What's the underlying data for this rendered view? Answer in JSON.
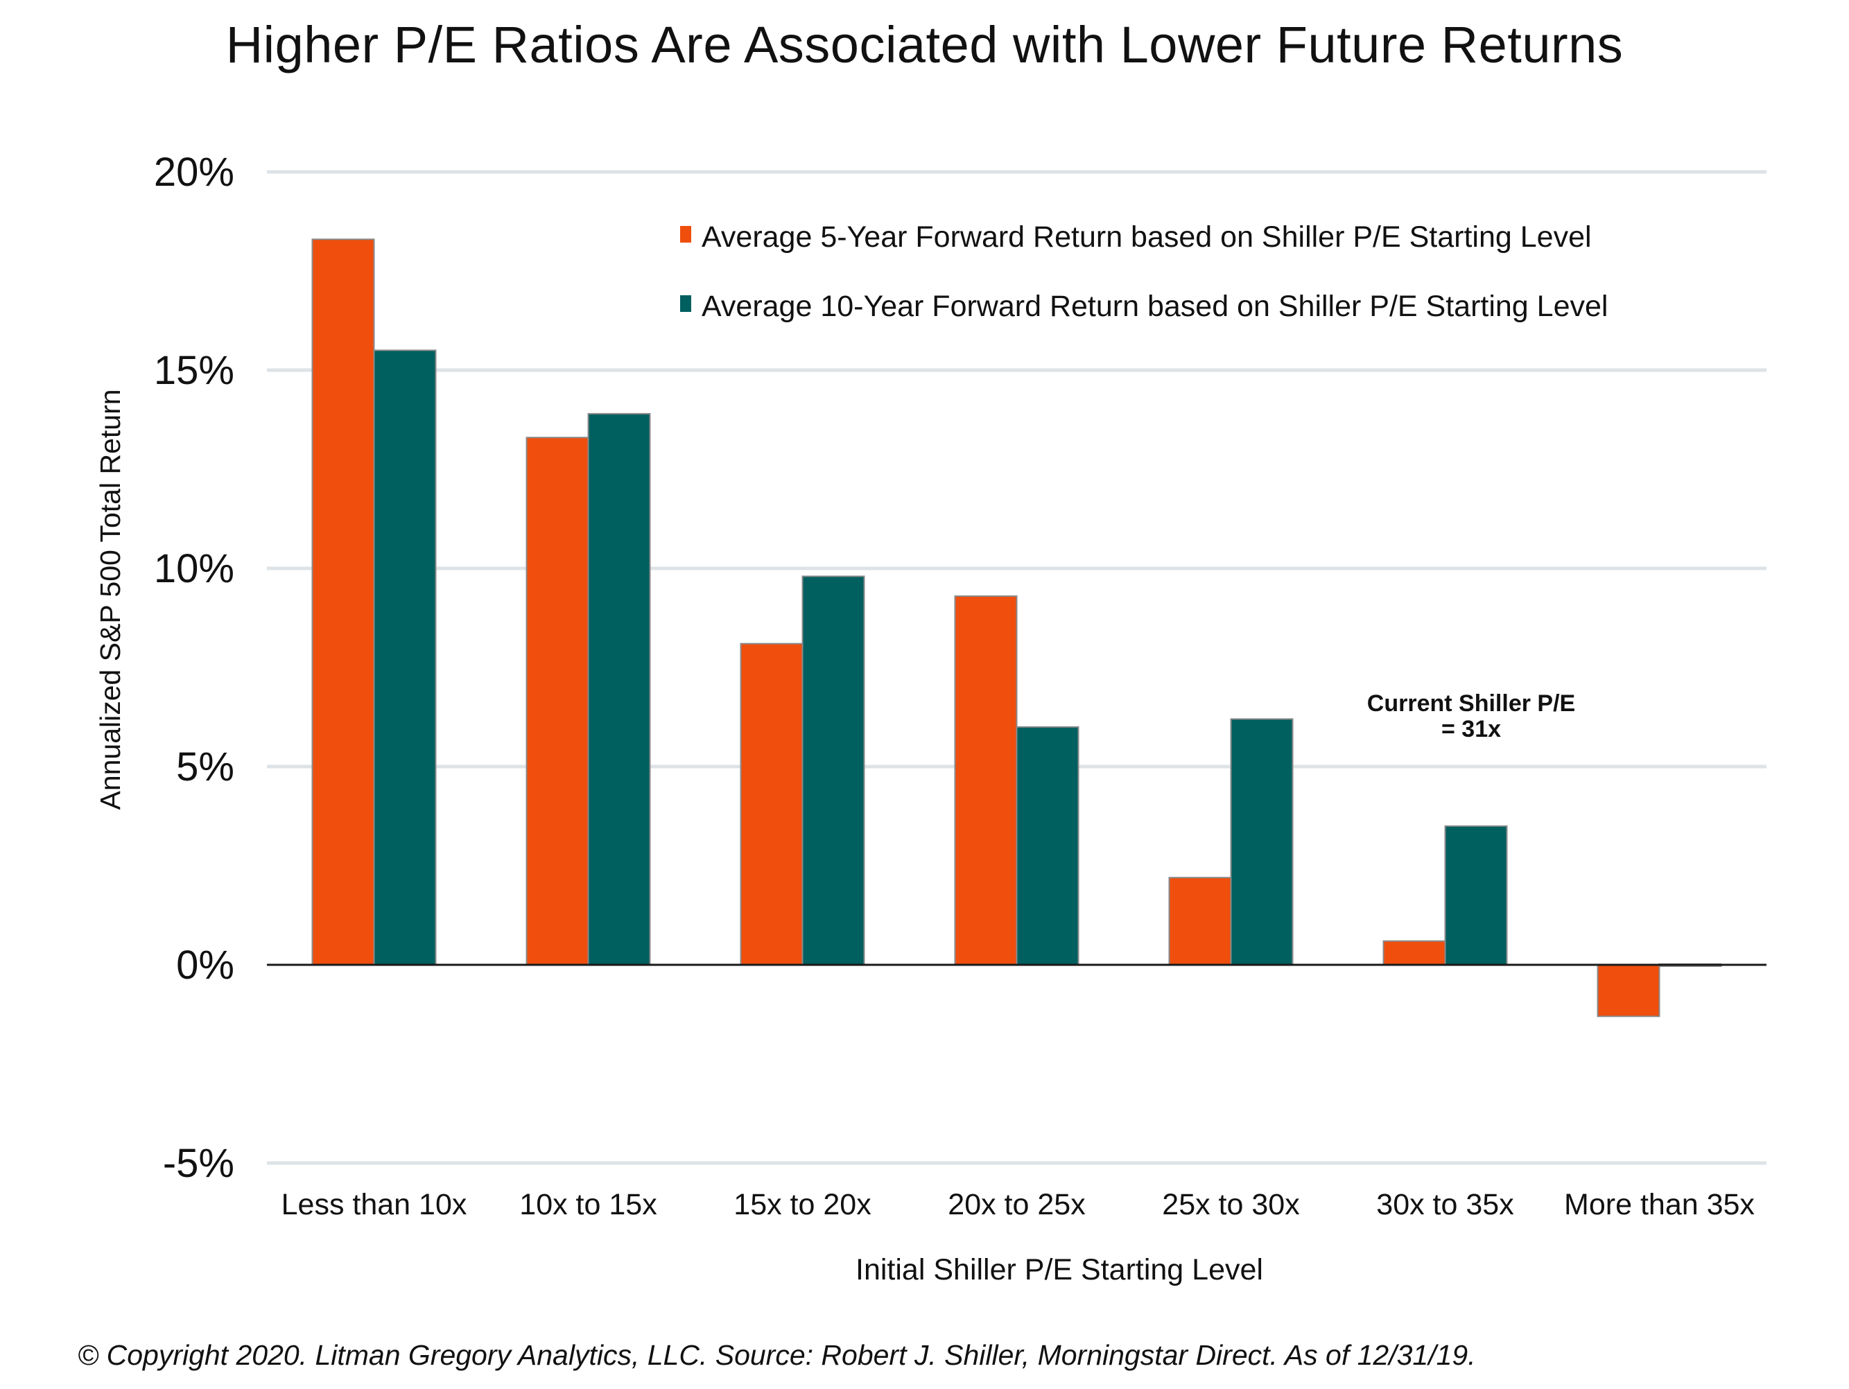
{
  "chart_data": {
    "type": "bar",
    "title": "Higher P/E Ratios Are Associated with Lower Future Returns",
    "xlabel": "Initial Shiller P/E Starting Level",
    "ylabel": "Annualized S&P 500 Total Return",
    "categories": [
      "Less than 10x",
      "10x to 15x",
      "15x to 20x",
      "20x to 25x",
      "25x to 30x",
      "30x to 35x",
      "More than 35x"
    ],
    "series": [
      {
        "name": "Average 5-Year Forward Return based on Shiller P/E Starting Level",
        "color": "#ef4e0d",
        "values": [
          18.3,
          13.3,
          8.1,
          9.3,
          2.2,
          0.6,
          -1.3
        ]
      },
      {
        "name": "Average 10-Year Forward Return based on Shiller P/E Starting Level",
        "color": "#005f5f",
        "values": [
          15.5,
          13.9,
          9.8,
          6.0,
          6.2,
          3.5,
          -0.05
        ]
      }
    ],
    "ylim": [
      -5,
      20
    ],
    "yticks": [
      -5,
      0,
      5,
      10,
      15,
      20
    ],
    "ytick_labels": [
      "-5%",
      "0%",
      "5%",
      "10%",
      "15%",
      "20%"
    ],
    "grid": true,
    "legend_position": "top-right",
    "annotation": {
      "line1": "Current Shiller P/E",
      "line2": "= 31x"
    }
  },
  "footer": {
    "source": "© Copyright 2020. Litman Gregory Analytics, LLC. Source: Robert J. Shiller, Morningstar Direct. As of 12/31/19."
  }
}
